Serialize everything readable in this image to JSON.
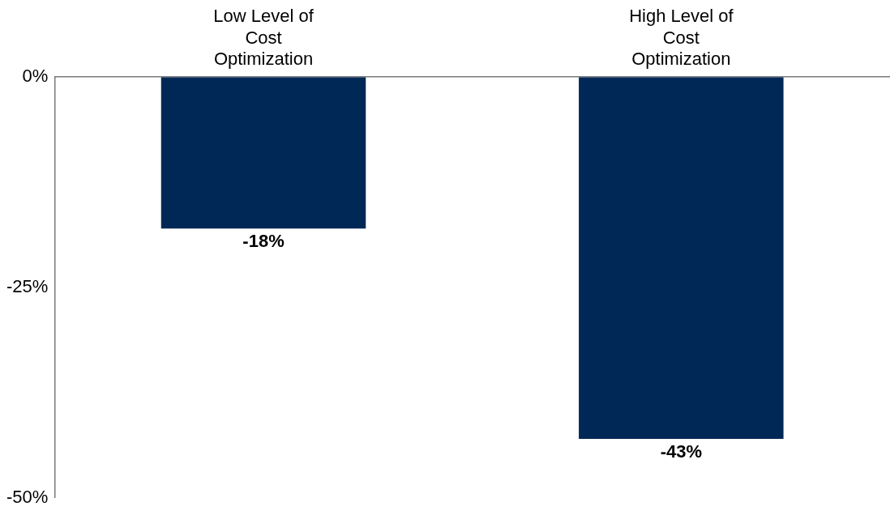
{
  "chart_data": {
    "type": "bar",
    "categories": [
      "Low Level of Cost Optimization",
      "High Level of Cost Optimization"
    ],
    "values": [
      -18,
      -43
    ],
    "color": "#002856",
    "value_labels": [
      "-18%",
      "-43%"
    ],
    "ylim": [
      -50,
      0
    ],
    "yticks": [
      {
        "value": 0,
        "label": "0%"
      },
      {
        "value": -25,
        "label": "-25%"
      },
      {
        "value": -50,
        "label": "-50%"
      }
    ],
    "grid": false,
    "legend": false
  }
}
